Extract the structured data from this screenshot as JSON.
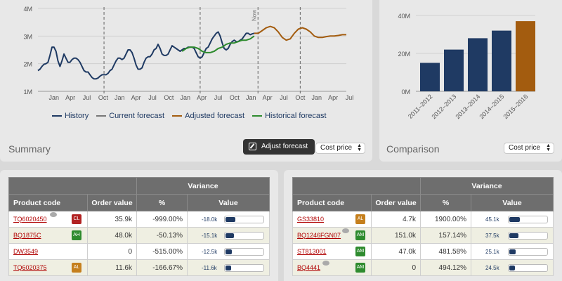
{
  "summary": {
    "title": "Summary",
    "adjust_button": "Adjust forecast",
    "price_select": "Cost price",
    "now_label": "Now",
    "legend": [
      {
        "label": "History",
        "color": "#1f3a63"
      },
      {
        "label": "Current forecast",
        "color": "#777777"
      },
      {
        "label": "Adjusted forecast",
        "color": "#a35c0f"
      },
      {
        "label": "Historical forecast",
        "color": "#2e8b2e"
      }
    ]
  },
  "comparison": {
    "title": "Comparison",
    "price_select": "Cost price"
  },
  "chart_data": [
    {
      "type": "line",
      "y_tick_labels": [
        "4M",
        "3M",
        "2M",
        "1M"
      ],
      "ylim": [
        1,
        4
      ],
      "x_tick_labels": [
        "Jan",
        "Apr",
        "Jul",
        "Oct",
        "Jan",
        "Apr",
        "Jul",
        "Oct",
        "Jan",
        "Apr",
        "Jul",
        "Oct",
        "Jan",
        "Apr",
        "Jul",
        "Oct",
        "Jan",
        "Apr",
        "Jul"
      ],
      "series": [
        {
          "name": "History",
          "color": "#1f3a63",
          "x": [
            0,
            0.5,
            1,
            1.5,
            2,
            2.5,
            3,
            3.5,
            4,
            4.5,
            5,
            5.5,
            6,
            6.5,
            7,
            7.5,
            8,
            8.5,
            9,
            9.5,
            10,
            10.5,
            11,
            11.5,
            12,
            12.5,
            13,
            13.5,
            14,
            14.5,
            15,
            15.5,
            16,
            16.5,
            17,
            17.5,
            18,
            18.5,
            19,
            19.5,
            20,
            20.5,
            21,
            21.5,
            22,
            22.5,
            23,
            23.5,
            24,
            24.5,
            25,
            25.5,
            26,
            26.5,
            27,
            27.5,
            28,
            28.5,
            29,
            29.5,
            30,
            30.5,
            31,
            31.5,
            32,
            32.5,
            33,
            33.5,
            34,
            34.5,
            35,
            35.5,
            36,
            36.5,
            37,
            37.5,
            38,
            38.5,
            39,
            39.5,
            40,
            40.5,
            41,
            41.5,
            42,
            42.5,
            43,
            43.5,
            44,
            44.5,
            45,
            45.5,
            46,
            46.5,
            47,
            47.5,
            48,
            48.5,
            49,
            49.5,
            50,
            50.5,
            51,
            51.5,
            52,
            52.5,
            53,
            53.5,
            54
          ],
          "y": [
            1.75,
            1.8,
            1.9,
            1.98,
            2.0,
            2.05,
            2.3,
            2.6,
            2.6,
            2.45,
            2.1,
            1.9,
            2.1,
            2.35,
            2.2,
            2.05,
            2.05,
            2.15,
            2.2,
            2.2,
            2.15,
            2.05,
            1.9,
            1.75,
            1.7,
            1.7,
            1.6,
            1.5,
            1.45,
            1.45,
            1.48,
            1.55,
            1.6,
            1.6,
            1.6,
            1.65,
            1.75,
            1.8,
            1.95,
            2.1,
            2.2,
            2.2,
            2.15,
            2.2,
            2.35,
            2.5,
            2.5,
            2.4,
            2.2,
            1.95,
            1.8,
            1.8,
            1.85,
            2.05,
            2.2,
            2.25,
            2.25,
            2.35,
            2.5,
            2.55,
            2.7,
            2.55,
            2.35,
            2.3,
            2.3,
            2.35,
            2.5,
            2.65,
            2.6,
            2.55,
            2.5,
            2.45,
            2.5,
            2.55,
            2.55,
            2.6,
            2.6,
            2.6,
            2.55,
            2.4,
            2.25,
            2.2,
            2.25,
            2.4,
            2.55,
            2.6,
            2.75,
            2.9,
            3.0,
            3.1,
            3.15,
            3.0,
            2.75,
            2.55,
            2.5,
            2.55,
            2.7,
            2.8,
            2.85,
            2.8,
            2.8,
            2.85,
            2.9,
            3.0,
            3.1,
            3.1,
            3.05,
            3.08,
            3.1
          ]
        },
        {
          "name": "Historical forecast",
          "color": "#2e8b2e",
          "x": [
            36,
            37,
            38,
            39,
            40,
            41,
            42,
            43,
            44,
            45,
            46,
            47,
            48,
            49,
            50,
            51,
            52,
            53,
            54
          ],
          "y": [
            2.45,
            2.55,
            2.6,
            2.6,
            2.55,
            2.45,
            2.4,
            2.4,
            2.45,
            2.55,
            2.6,
            2.7,
            2.75,
            2.75,
            2.8,
            2.85,
            2.85,
            2.9,
            3.0
          ]
        },
        {
          "name": "Adjusted forecast",
          "color": "#a35c0f",
          "x": [
            54,
            55,
            56,
            57,
            58,
            59,
            60,
            61,
            62,
            63,
            64,
            65,
            66,
            67,
            68,
            69,
            70,
            71,
            72,
            73,
            74,
            75,
            76,
            77
          ],
          "y": [
            3.1,
            3.1,
            3.2,
            3.3,
            3.35,
            3.3,
            3.15,
            2.95,
            2.85,
            2.9,
            3.1,
            3.25,
            3.3,
            3.25,
            3.15,
            3.0,
            2.95,
            2.95,
            2.98,
            3.0,
            3.0,
            3.02,
            3.05,
            3.05
          ]
        }
      ]
    },
    {
      "type": "bar",
      "categories": [
        "2011–2012",
        "2012–2013",
        "2013–2014",
        "2014–2015",
        "2015–2016"
      ],
      "values": [
        15,
        22,
        28,
        32,
        37
      ],
      "colors": [
        "#1f3a63",
        "#1f3a63",
        "#1f3a63",
        "#1f3a63",
        "#a35c0f"
      ],
      "y_tick_labels": [
        "40M",
        "20M",
        "0M"
      ],
      "ylim": [
        0,
        40
      ]
    }
  ],
  "tables": {
    "headers": {
      "product": "Product code",
      "order": "Order value",
      "variance": "Variance",
      "pct": "%",
      "value": "Value"
    },
    "left": [
      {
        "code": "TQ6020450",
        "tag": "CL",
        "tag_color": "#b22222",
        "bubble": true,
        "order": "35.9k",
        "pct": "-999.00%",
        "value": "-18.0k",
        "fill": 0.25
      },
      {
        "code": "BQ1875C",
        "tag": "AH",
        "tag_color": "#2e8b2e",
        "bubble": false,
        "order": "48.0k",
        "pct": "-50.13%",
        "value": "-15.1k",
        "fill": 0.22
      },
      {
        "code": "DW3549",
        "tag": "",
        "tag_color": "",
        "bubble": false,
        "order": "0",
        "pct": "-515.00%",
        "value": "-12.5k",
        "fill": 0.17
      },
      {
        "code": "TQ6020375",
        "tag": "AL",
        "tag_color": "#c57f1d",
        "bubble": false,
        "order": "11.6k",
        "pct": "-166.67%",
        "value": "-11.6k",
        "fill": 0.15
      }
    ],
    "right": [
      {
        "code": "GS33810",
        "tag": "AL",
        "tag_color": "#c57f1d",
        "bubble": false,
        "order": "4.7k",
        "pct": "1900.00%",
        "value": "45.1k",
        "fill": 0.28
      },
      {
        "code": "BQ1246FGN07",
        "tag": "AM",
        "tag_color": "#2e8b2e",
        "bubble": true,
        "order": "151.0k",
        "pct": "157.14%",
        "value": "37.5k",
        "fill": 0.23
      },
      {
        "code": "ST813001",
        "tag": "AM",
        "tag_color": "#2e8b2e",
        "bubble": false,
        "order": "47.0k",
        "pct": "481.58%",
        "value": "25.1k",
        "fill": 0.16
      },
      {
        "code": "BQ4441",
        "tag": "AM",
        "tag_color": "#2e8b2e",
        "bubble": true,
        "order": "0",
        "pct": "494.12%",
        "value": "24.5k",
        "fill": 0.15
      }
    ]
  }
}
